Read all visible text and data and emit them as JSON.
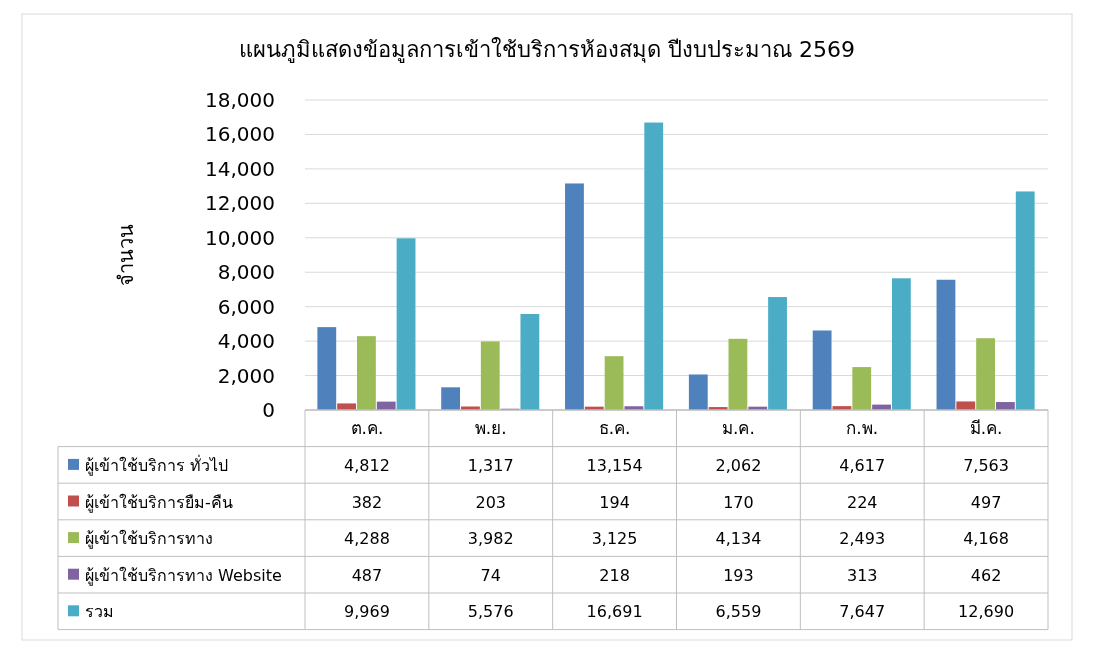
{
  "chart_data": {
    "type": "bar",
    "title": "แผนภูมิแสดงข้อมูลการเข้าใช้บริการห้องสมุด ปีงบประมาณ 2569",
    "ylabel": "จำนวน",
    "categories": [
      "ต.ค.",
      "พ.ย.",
      "ธ.ค.",
      "ม.ค.",
      "ก.พ.",
      "มี.ค."
    ],
    "series": [
      {
        "name": "ผู้เข้าใช้บริการ ทั่วไป",
        "color": "#4f81bd",
        "values": [
          4812,
          1317,
          13154,
          2062,
          4617,
          7563
        ],
        "value_labels": [
          "4,812",
          "1,317",
          "13,154",
          "2,062",
          "4,617",
          "7,563"
        ]
      },
      {
        "name": "ผู้เข้าใช้บริการยืม-คืน",
        "color": "#c0504d",
        "values": [
          382,
          203,
          194,
          170,
          224,
          497
        ],
        "value_labels": [
          "382",
          "203",
          "194",
          "170",
          "224",
          "497"
        ]
      },
      {
        "name": "ผู้เข้าใช้บริการทาง",
        "color": "#9bbb59",
        "values": [
          4288,
          3982,
          3125,
          4134,
          2493,
          4168
        ],
        "value_labels": [
          "4,288",
          "3,982",
          "3,125",
          "4,134",
          "2,493",
          "4,168"
        ]
      },
      {
        "name": "ผู้เข้าใช้บริการทาง Website",
        "color": "#8064a2",
        "values": [
          487,
          74,
          218,
          193,
          313,
          462
        ],
        "value_labels": [
          "487",
          "74",
          "218",
          "193",
          "313",
          "462"
        ]
      },
      {
        "name": "รวม",
        "color": "#4bacc6",
        "values": [
          9969,
          5576,
          16691,
          6559,
          7647,
          12690
        ],
        "value_labels": [
          "9,969",
          "5,576",
          "16,691",
          "6,559",
          "7,647",
          "12,690"
        ]
      }
    ],
    "ylim": [
      0,
      18000
    ],
    "yticks": [
      {
        "value": 0,
        "label": "0"
      },
      {
        "value": 2000,
        "label": "2,000"
      },
      {
        "value": 4000,
        "label": "4,000"
      },
      {
        "value": 6000,
        "label": "6,000"
      },
      {
        "value": 8000,
        "label": "8,000"
      },
      {
        "value": 10000,
        "label": "10,000"
      },
      {
        "value": 12000,
        "label": "12,000"
      },
      {
        "value": 14000,
        "label": "14,000"
      },
      {
        "value": 16000,
        "label": "16,000"
      },
      {
        "value": 18000,
        "label": "18,000"
      }
    ],
    "grid": "y",
    "legend": "bottom"
  }
}
